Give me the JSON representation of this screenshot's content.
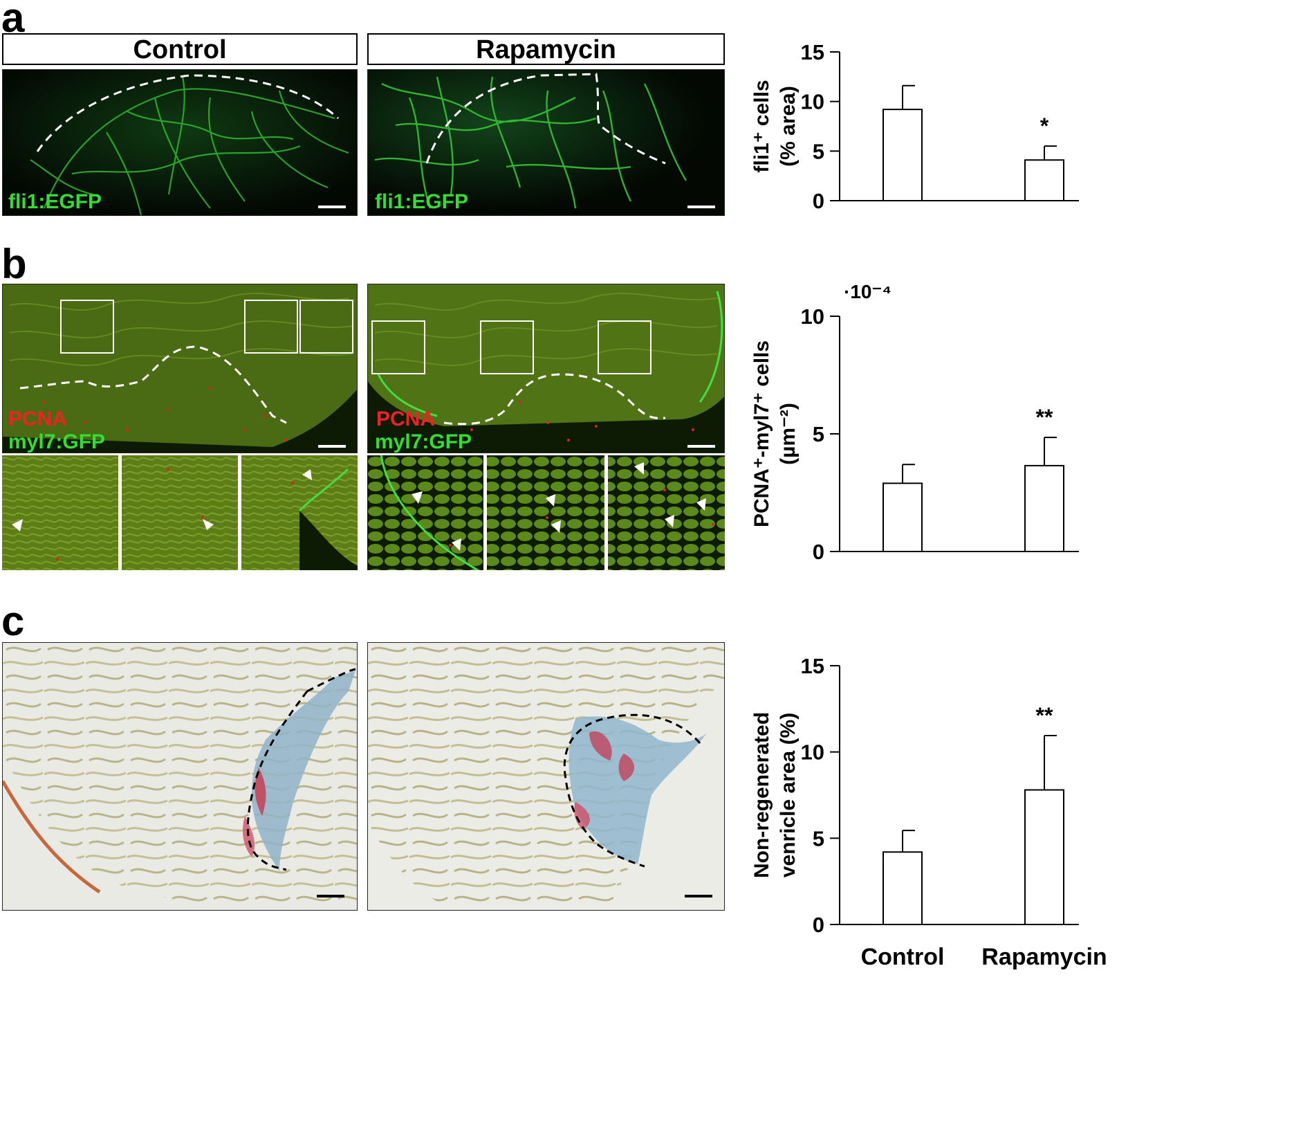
{
  "panels": {
    "a": {
      "letter": "a",
      "control_label": "Control",
      "rapamycin_label": "Rapamycin",
      "stain_label": "fli1:EGFP",
      "stain_color": "#33dd33"
    },
    "b": {
      "letter": "b",
      "stain_red": "PCNA",
      "stain_green": "myl7:GFP",
      "red_color": "#ee2222",
      "green_color": "#33dd33"
    },
    "c": {
      "letter": "c"
    }
  },
  "chart_data": [
    {
      "type": "bar",
      "categories": [
        "Control",
        "Rapamycin"
      ],
      "values": [
        9.2,
        4.1
      ],
      "errors": [
        2.4,
        1.4
      ],
      "significance": [
        "",
        "*"
      ],
      "ylabel": "fli1⁺ cells (% area)",
      "ylabel_lines": [
        "fli1⁺ cells",
        "(% area)"
      ],
      "ylim": [
        0,
        15
      ],
      "yticks": [
        "0",
        "5",
        "10",
        "15"
      ],
      "show_xlabels": false
    },
    {
      "type": "bar",
      "categories": [
        "Control",
        "Rapamycin"
      ],
      "values": [
        2.9,
        3.65
      ],
      "errors": [
        0.8,
        1.2
      ],
      "significance": [
        "",
        "**"
      ],
      "ylabel": "PCNA⁺-myl7⁺ cells (µm⁻²)",
      "ylabel_lines": [
        "PCNA⁺-myl7⁺ cells",
        "(µm⁻²)"
      ],
      "multiplier": "·10⁻⁴",
      "ylim": [
        0,
        10
      ],
      "yticks": [
        "0",
        "5",
        "10"
      ],
      "show_xlabels": false
    },
    {
      "type": "bar",
      "categories": [
        "Control",
        "Rapamycin"
      ],
      "values": [
        4.2,
        7.8
      ],
      "errors": [
        1.25,
        3.15
      ],
      "significance": [
        "",
        "**"
      ],
      "ylabel": "Non-regenerated venricle area (%)",
      "ylabel_lines": [
        "Non-regenerated",
        "venricle area (%)"
      ],
      "ylim": [
        0,
        15
      ],
      "yticks": [
        "0",
        "5",
        "10",
        "15"
      ],
      "show_xlabels": true
    }
  ]
}
